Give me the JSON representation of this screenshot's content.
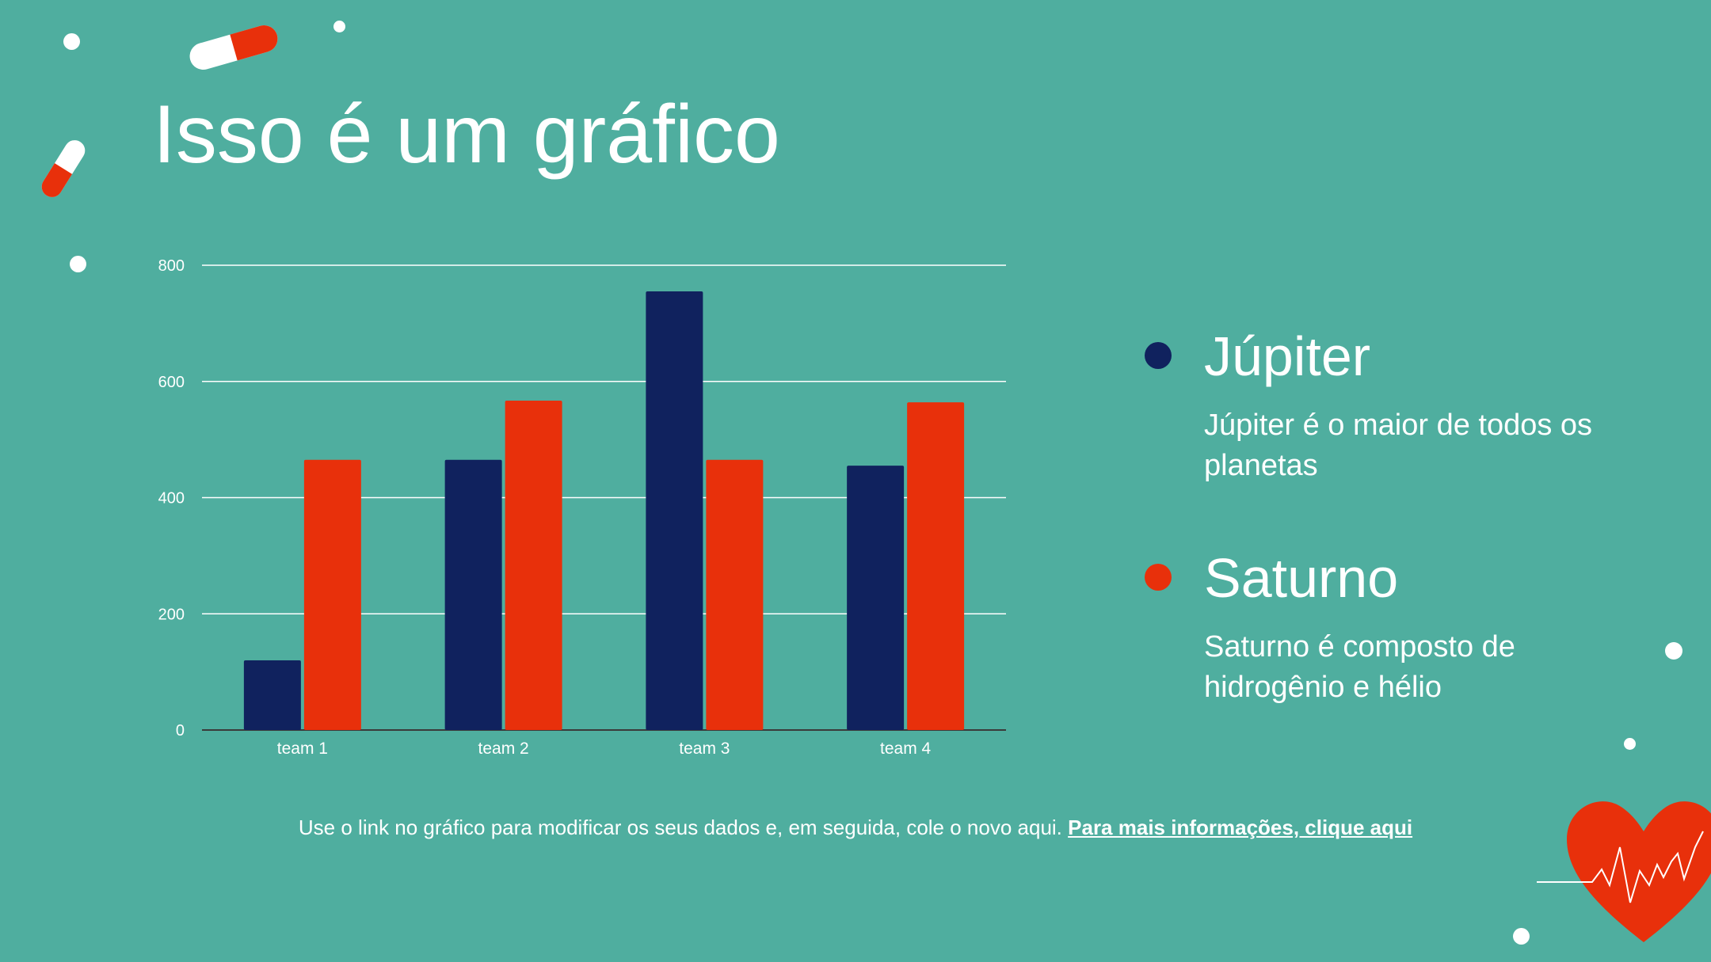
{
  "slide": {
    "title": "Isso é um gráfico",
    "background": "#4fae9f"
  },
  "legend": [
    {
      "name": "Júpiter",
      "description": "Júpiter é o maior de todos os planetas",
      "color": "#10225e"
    },
    {
      "name": "Saturno",
      "description": "Saturno é composto de hidrogênio e hélio",
      "color": "#e8300b"
    }
  ],
  "footnote": {
    "text": "Use o link no gráfico para modificar os seus dados e, em seguida, cole o novo aqui.",
    "link_label": "Para mais informações, clique aqui"
  },
  "decorations": [
    "capsule-icon",
    "heart-icon",
    "heartbeat-line-icon",
    "dot-icon"
  ],
  "chart_data": {
    "type": "bar",
    "categories": [
      "team 1",
      "team 2",
      "team 3",
      "team 4"
    ],
    "series": [
      {
        "name": "Júpiter",
        "values": [
          120,
          465,
          755,
          455
        ],
        "color": "#10225e"
      },
      {
        "name": "Saturno",
        "values": [
          465,
          567,
          465,
          564
        ],
        "color": "#e8300b"
      }
    ],
    "yticks": [
      0,
      200,
      400,
      600,
      800
    ],
    "ylim": [
      0,
      800
    ],
    "grid": true,
    "xlabel": "",
    "ylabel": ""
  }
}
